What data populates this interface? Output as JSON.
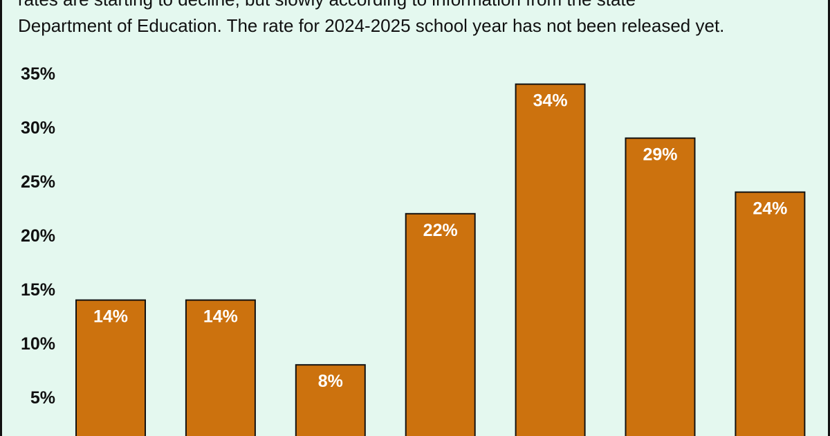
{
  "caption": {
    "line1": "rates are starting to decline, but slowly according to information from the state",
    "line2": "Department of Education. The rate for 2024-2025 school year has not been released yet."
  },
  "colors": {
    "background": "#e4f8ef",
    "bar": "#cc720e",
    "bar_outline": "#111111",
    "label": "#ffffff",
    "text": "#111111"
  },
  "chart_data": {
    "type": "bar",
    "title": "",
    "xlabel": "",
    "ylabel": "",
    "categories": [
      "",
      "",
      "",
      "",
      "",
      "",
      ""
    ],
    "values": [
      14,
      14,
      8,
      22,
      34,
      29,
      24
    ],
    "data_labels": [
      "14%",
      "14%",
      "8%",
      "22%",
      "34%",
      "29%",
      "24%"
    ],
    "yticks": [
      5,
      10,
      15,
      20,
      25,
      30,
      35
    ],
    "ytick_labels": [
      "5%",
      "10%",
      "15%",
      "20%",
      "25%",
      "30%",
      "35%"
    ],
    "ylim": [
      0,
      35
    ],
    "grid": false,
    "legend": "none"
  }
}
